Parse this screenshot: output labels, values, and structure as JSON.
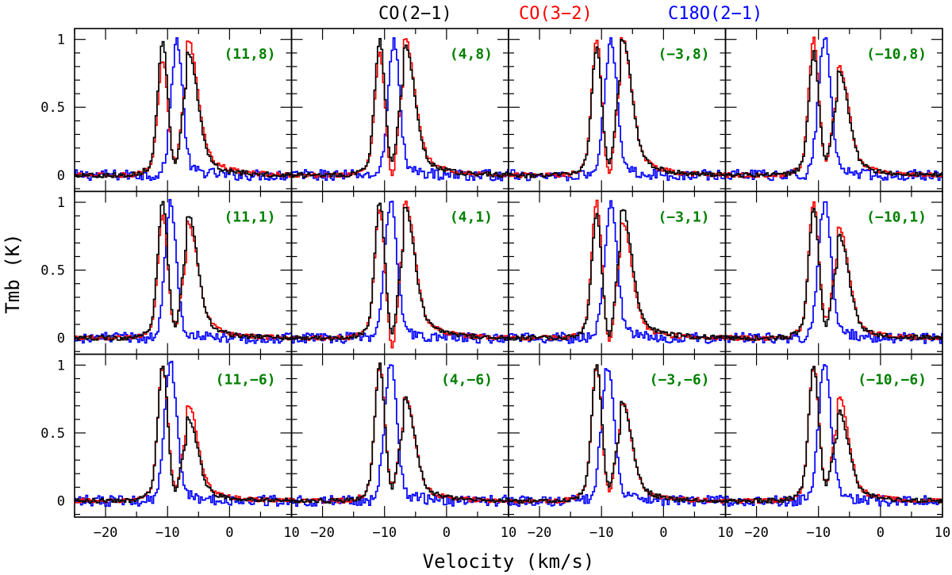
{
  "chart_data": {
    "type": "line",
    "style": "histogram-step",
    "xlabel": "Velocity (km/s)",
    "ylabel": "Tmb (K)",
    "xlim": [
      -25,
      10
    ],
    "ylim": [
      -0.12,
      1.08
    ],
    "xticks": [
      -20,
      -10,
      0,
      10
    ],
    "xtick_labels": [
      "−20",
      "−10",
      "0",
      "10"
    ],
    "yticks": [
      0,
      0.5,
      1
    ],
    "ytick_labels": [
      "0",
      "0.5",
      "1"
    ],
    "grid": false,
    "legend": [
      {
        "name": "CO(2−1)",
        "color": "#000000"
      },
      {
        "name": "CO(3−2)",
        "color": "#ff0000"
      },
      {
        "name": "C18O(2−1)",
        "color": "#0000ff"
      }
    ],
    "label_color": "#008000",
    "layout": {
      "rows": 3,
      "cols": 4
    },
    "panels": [
      {
        "label": "(11,8)",
        "co21": {
          "b1": 1.0,
          "b2": 0.9,
          "dip": 0.55,
          "tail": 1.0
        },
        "co32": {
          "b1": 0.85,
          "b2": 1.0,
          "dip": 0.6,
          "tail": 1.4
        },
        "c18o": {
          "v": -8.5,
          "w": 0.9
        }
      },
      {
        "label": "(4,8)",
        "co21": {
          "b1": 1.0,
          "b2": 0.95,
          "dip": 0.6,
          "tail": 1.1
        },
        "co32": {
          "b1": 0.9,
          "b2": 1.0,
          "dip": 0.45,
          "tail": 1.3
        },
        "c18o": {
          "v": -8.5,
          "w": 0.9
        }
      },
      {
        "label": "(−3,8)",
        "co21": {
          "b1": 0.95,
          "b2": 1.0,
          "dip": 0.55,
          "tail": 1.1
        },
        "co32": {
          "b1": 1.0,
          "b2": 1.0,
          "dip": 0.45,
          "tail": 1.2
        },
        "c18o": {
          "v": -8.5,
          "w": 1.0
        }
      },
      {
        "label": "(−10,8)",
        "co21": {
          "b1": 0.9,
          "b2": 0.75,
          "dip": 0.65,
          "tail": 1.0
        },
        "co32": {
          "b1": 1.0,
          "b2": 0.8,
          "dip": 0.62,
          "tail": 1.0
        },
        "c18o": {
          "v": -9.0,
          "w": 1.0
        }
      },
      {
        "label": "(11,1)",
        "co21": {
          "b1": 1.0,
          "b2": 0.9,
          "dip": 0.55,
          "tail": 1.0
        },
        "co32": {
          "b1": 0.9,
          "b2": 0.85,
          "dip": 0.58,
          "tail": 1.4
        },
        "c18o": {
          "v": -9.5,
          "w": 0.9
        }
      },
      {
        "label": "(4,1)",
        "co21": {
          "b1": 1.0,
          "b2": 0.95,
          "dip": 0.5,
          "tail": 1.3
        },
        "co32": {
          "b1": 0.95,
          "b2": 1.0,
          "dip": 0.35,
          "tail": 1.3
        },
        "c18o": {
          "v": -9.0,
          "w": 1.0
        }
      },
      {
        "label": "(−3,1)",
        "co21": {
          "b1": 0.9,
          "b2": 0.95,
          "dip": 0.45,
          "tail": 1.3
        },
        "co32": {
          "b1": 1.0,
          "b2": 0.85,
          "dip": 0.4,
          "tail": 1.0
        },
        "c18o": {
          "v": -8.5,
          "w": 1.0
        }
      },
      {
        "label": "(−10,1)",
        "co21": {
          "b1": 0.95,
          "b2": 0.75,
          "dip": 0.6,
          "tail": 1.0
        },
        "co32": {
          "b1": 1.0,
          "b2": 0.8,
          "dip": 0.65,
          "tail": 1.0
        },
        "c18o": {
          "v": -9.0,
          "w": 1.0
        }
      },
      {
        "label": "(11,−6)",
        "co21": {
          "b1": 1.0,
          "b2": 0.6,
          "dip": 0.55,
          "tail": 1.0
        },
        "co32": {
          "b1": 1.0,
          "b2": 0.7,
          "dip": 0.6,
          "tail": 1.3
        },
        "c18o": {
          "v": -9.5,
          "w": 1.0
        }
      },
      {
        "label": "(4,−6)",
        "co21": {
          "b1": 1.0,
          "b2": 0.75,
          "dip": 0.6,
          "tail": 1.1
        },
        "co32": {
          "b1": 1.0,
          "b2": 0.75,
          "dip": 0.62,
          "tail": 1.1
        },
        "c18o": {
          "v": -9.0,
          "w": 1.0
        }
      },
      {
        "label": "(−3,−6)",
        "co21": {
          "b1": 1.0,
          "b2": 0.72,
          "dip": 0.6,
          "tail": 1.1
        },
        "co32": {
          "b1": 1.0,
          "b2": 0.72,
          "dip": 0.55,
          "tail": 1.0
        },
        "c18o": {
          "v": -9.0,
          "w": 1.0
        }
      },
      {
        "label": "(−10,−6)",
        "co21": {
          "b1": 1.0,
          "b2": 0.65,
          "dip": 0.65,
          "tail": 1.0
        },
        "co32": {
          "b1": 1.0,
          "b2": 0.75,
          "dip": 0.65,
          "tail": 1.0
        },
        "c18o": {
          "v": -9.0,
          "w": 1.0
        }
      }
    ]
  }
}
